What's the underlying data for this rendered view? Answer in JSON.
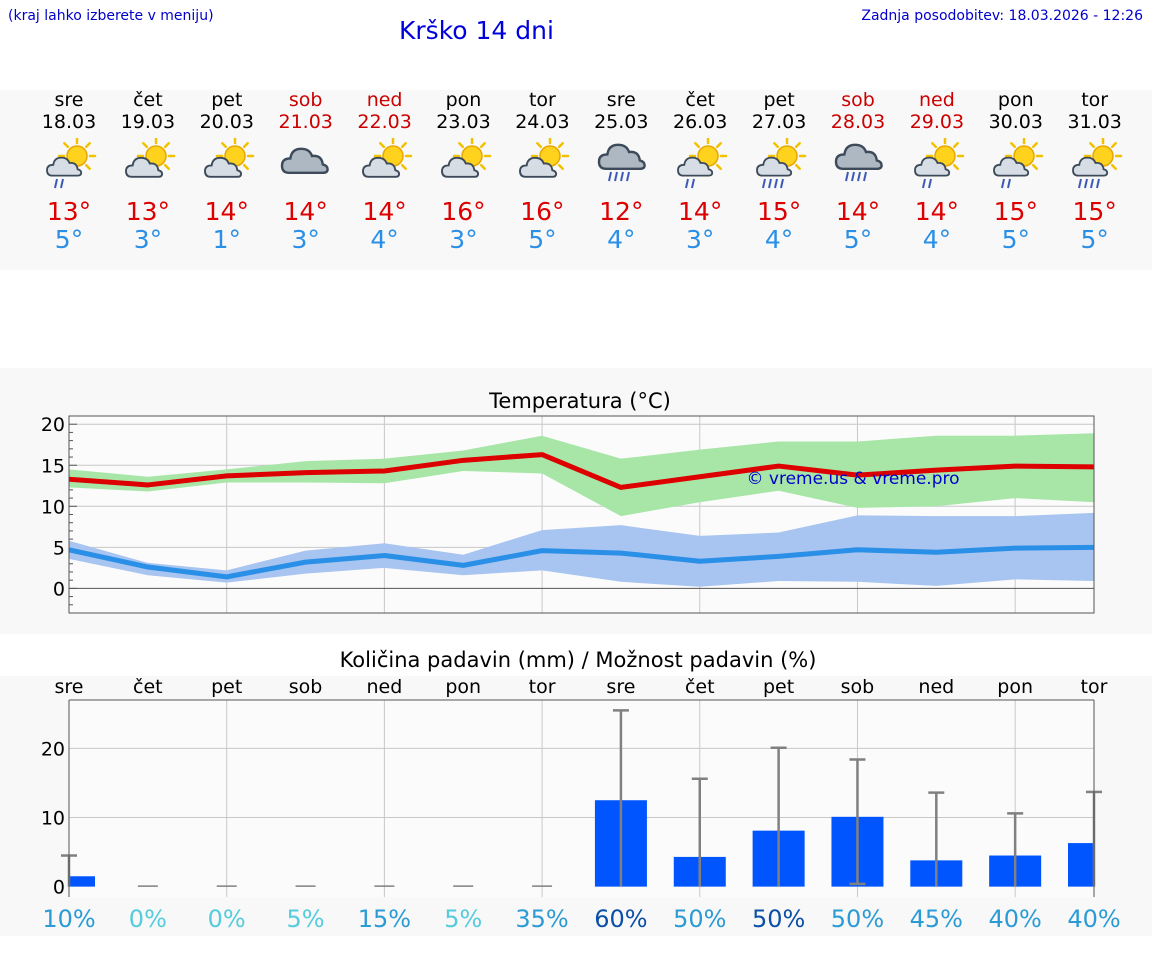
{
  "header": {
    "note_left": "(kraj lahko izberete v meniju)",
    "title": "Krško 14 dni",
    "updated": "Zadnja posodobitev: 18.03.2026 - 12:26"
  },
  "colors": {
    "tmax": "#dd0000",
    "tmin": "#2a8fe6",
    "max_band": "#a8e6a8",
    "min_band": "#a8c4f0",
    "bar": "#0055ff",
    "errbar": "#808080"
  },
  "forecast": {
    "days": [
      {
        "name": "sre",
        "date": "18.03",
        "weekend": false,
        "max": "13°",
        "min": "5°",
        "icon": "sun-cloud-rain-icon"
      },
      {
        "name": "čet",
        "date": "19.03",
        "weekend": false,
        "max": "13°",
        "min": "3°",
        "icon": "sun-cloud-icon"
      },
      {
        "name": "pet",
        "date": "20.03",
        "weekend": false,
        "max": "14°",
        "min": "1°",
        "icon": "sun-cloud-icon"
      },
      {
        "name": "sob",
        "date": "21.03",
        "weekend": true,
        "max": "14°",
        "min": "3°",
        "icon": "cloudy-icon"
      },
      {
        "name": "ned",
        "date": "22.03",
        "weekend": true,
        "max": "14°",
        "min": "4°",
        "icon": "sun-cloud-icon"
      },
      {
        "name": "pon",
        "date": "23.03",
        "weekend": false,
        "max": "16°",
        "min": "3°",
        "icon": "sun-cloud-icon"
      },
      {
        "name": "tor",
        "date": "24.03",
        "weekend": false,
        "max": "16°",
        "min": "5°",
        "icon": "sun-cloud-icon"
      },
      {
        "name": "sre",
        "date": "25.03",
        "weekend": false,
        "max": "12°",
        "min": "4°",
        "icon": "cloud-heavy-rain-icon"
      },
      {
        "name": "čet",
        "date": "26.03",
        "weekend": false,
        "max": "14°",
        "min": "3°",
        "icon": "sun-cloud-rain-icon"
      },
      {
        "name": "pet",
        "date": "27.03",
        "weekend": false,
        "max": "15°",
        "min": "4°",
        "icon": "sun-cloud-heavy-rain-icon"
      },
      {
        "name": "sob",
        "date": "28.03",
        "weekend": true,
        "max": "14°",
        "min": "5°",
        "icon": "cloud-heavy-rain-icon"
      },
      {
        "name": "ned",
        "date": "29.03",
        "weekend": true,
        "max": "14°",
        "min": "4°",
        "icon": "sun-cloud-rain-icon"
      },
      {
        "name": "pon",
        "date": "30.03",
        "weekend": false,
        "max": "15°",
        "min": "5°",
        "icon": "sun-cloud-rain-icon"
      },
      {
        "name": "tor",
        "date": "31.03",
        "weekend": false,
        "max": "15°",
        "min": "5°",
        "icon": "sun-cloud-heavy-rain-icon"
      }
    ]
  },
  "chart_data": [
    {
      "type": "line",
      "title": "Temperatura (°C)",
      "ylim": [
        -3,
        21
      ],
      "yticks": [
        0,
        5,
        10,
        15,
        20
      ],
      "x": [
        0,
        1,
        2,
        3,
        4,
        5,
        6,
        7,
        8,
        9,
        10,
        11,
        12,
        13
      ],
      "watermark": "© vreme.us & vreme.pro",
      "series": [
        {
          "name": "max",
          "values": [
            13.3,
            12.6,
            13.7,
            14.1,
            14.3,
            15.6,
            16.3,
            12.3,
            13.6,
            14.9,
            13.8,
            14.4,
            14.9,
            14.8
          ]
        },
        {
          "name": "max_low",
          "values": [
            12.3,
            11.8,
            12.9,
            12.9,
            12.8,
            14.3,
            14.0,
            8.8,
            10.5,
            11.9,
            9.8,
            10.0,
            11.0,
            10.5
          ]
        },
        {
          "name": "max_high",
          "values": [
            14.5,
            13.6,
            14.5,
            15.5,
            15.8,
            16.8,
            18.6,
            15.8,
            16.9,
            17.9,
            17.9,
            18.6,
            18.6,
            18.9
          ]
        },
        {
          "name": "min",
          "values": [
            4.7,
            2.6,
            1.4,
            3.2,
            4.0,
            2.8,
            4.6,
            4.3,
            3.3,
            3.9,
            4.7,
            4.4,
            4.9,
            5.0
          ]
        },
        {
          "name": "min_low",
          "values": [
            3.6,
            1.6,
            0.7,
            1.8,
            2.5,
            1.6,
            2.2,
            0.8,
            0.2,
            0.9,
            0.8,
            0.3,
            1.1,
            0.9
          ]
        },
        {
          "name": "min_high",
          "values": [
            5.8,
            3.1,
            2.2,
            4.6,
            5.5,
            4.1,
            7.1,
            7.7,
            6.4,
            6.8,
            8.9,
            8.8,
            8.8,
            9.2
          ]
        }
      ]
    },
    {
      "type": "bar",
      "title": "Količina padavin (mm) / Možnost padavin (%)",
      "categories": [
        "sre",
        "čet",
        "pet",
        "sob",
        "ned",
        "pon",
        "tor",
        "sre",
        "čet",
        "pet",
        "sob",
        "ned",
        "pon",
        "tor"
      ],
      "ylim": [
        -1.5,
        27
      ],
      "yticks": [
        0,
        10,
        20
      ],
      "values": [
        1.5,
        0,
        0,
        0,
        0,
        0,
        0,
        12.5,
        4.3,
        8.1,
        10.1,
        3.8,
        4.5,
        6.3
      ],
      "err_low": [
        0,
        0,
        0,
        0,
        0,
        0,
        0,
        0,
        0,
        0,
        0.4,
        0,
        0,
        0
      ],
      "err_high": [
        4.5,
        0,
        0,
        0,
        0,
        0,
        0,
        25.5,
        15.6,
        20.1,
        18.4,
        13.6,
        10.6,
        13.7
      ],
      "probability": [
        "10%",
        "0%",
        "0%",
        "5%",
        "15%",
        "5%",
        "35%",
        "60%",
        "50%",
        "50%",
        "50%",
        "45%",
        "40%",
        "40%"
      ],
      "prob_colors": [
        "#2b9bd6",
        "#55ccdd",
        "#55ccdd",
        "#55ccdd",
        "#2b9bd6",
        "#55ccdd",
        "#2b9bd6",
        "#0b4fa8",
        "#2b9bd6",
        "#0b4fa8",
        "#2b9bd6",
        "#2b9bd6",
        "#2b9bd6",
        "#2b9bd6"
      ]
    }
  ]
}
